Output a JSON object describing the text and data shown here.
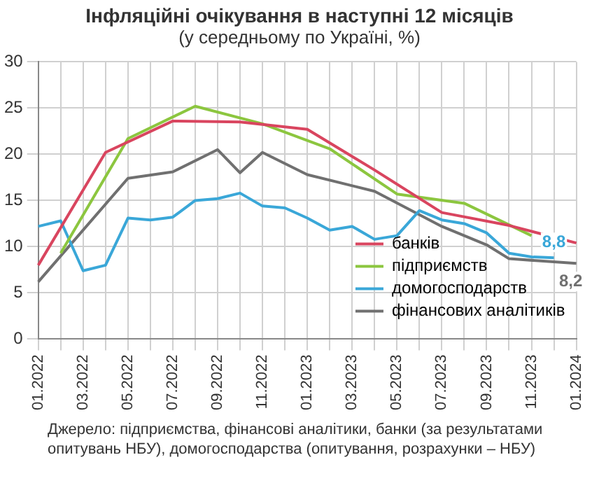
{
  "chart_data": {
    "type": "line",
    "title": "Інфляційні очікування в наступні 12 місяців",
    "subtitle": "(у середньому по Україні,  %)",
    "categories": [
      "01.2022",
      null,
      "03.2022",
      null,
      "05.2022",
      null,
      "07.2022",
      null,
      "09.2022",
      null,
      "11.2022",
      null,
      "01.2023",
      null,
      "03.2023",
      null,
      "05.2023",
      null,
      "07.2023",
      null,
      "09.2023",
      null,
      "11.2023",
      null,
      "01.2024"
    ],
    "series": [
      {
        "name": "банків",
        "color": "#d9455f",
        "values": [
          8.0,
          null,
          null,
          20.2,
          null,
          null,
          23.6,
          null,
          null,
          23.5,
          null,
          null,
          22.7,
          null,
          null,
          18.3,
          null,
          null,
          13.7,
          null,
          null,
          12.3,
          null,
          null,
          10.4
        ]
      },
      {
        "name": "підприємств",
        "color": "#8cc63f",
        "values": [
          null,
          9.3,
          null,
          null,
          21.7,
          null,
          null,
          25.2,
          null,
          null,
          23.3,
          null,
          null,
          20.6,
          null,
          null,
          15.7,
          null,
          null,
          14.7,
          null,
          null,
          11.2,
          null,
          null
        ]
      },
      {
        "name": "домогосподарств",
        "color": "#3aa7d8",
        "values": [
          12.2,
          12.8,
          7.4,
          8.0,
          13.1,
          12.9,
          13.2,
          15.0,
          15.2,
          15.8,
          14.4,
          14.2,
          13.1,
          11.8,
          12.2,
          10.8,
          11.2,
          13.9,
          12.9,
          12.5,
          11.5,
          9.3,
          8.9,
          8.8,
          null
        ],
        "value_labels": [
          null,
          null,
          null,
          null,
          null,
          null,
          null,
          null,
          null,
          null,
          null,
          null,
          null,
          null,
          null,
          null,
          null,
          null,
          null,
          null,
          null,
          null,
          null,
          "8,8",
          null
        ]
      },
      {
        "name": "фінансових аналітиків",
        "color": "#707070",
        "values": [
          6.2,
          null,
          null,
          null,
          17.4,
          null,
          18.1,
          null,
          20.5,
          18.0,
          20.2,
          null,
          17.8,
          null,
          null,
          16.0,
          null,
          null,
          12.2,
          null,
          10.2,
          8.7,
          null,
          null,
          8.2
        ],
        "value_labels": [
          null,
          null,
          null,
          null,
          null,
          null,
          null,
          null,
          null,
          null,
          null,
          null,
          null,
          null,
          null,
          null,
          null,
          null,
          null,
          null,
          null,
          null,
          null,
          null,
          "8,2"
        ]
      }
    ],
    "ylim": [
      0,
      30
    ],
    "yticks": [
      0,
      5,
      10,
      15,
      20,
      25,
      30
    ],
    "grid": true,
    "legend": "bottom right",
    "annotations": [
      "Джерело: підприємства, фінансові аналітики, банки (за результатами опитувань НБУ), домогосподарства (опитування, розрахунки – НБУ)"
    ]
  }
}
